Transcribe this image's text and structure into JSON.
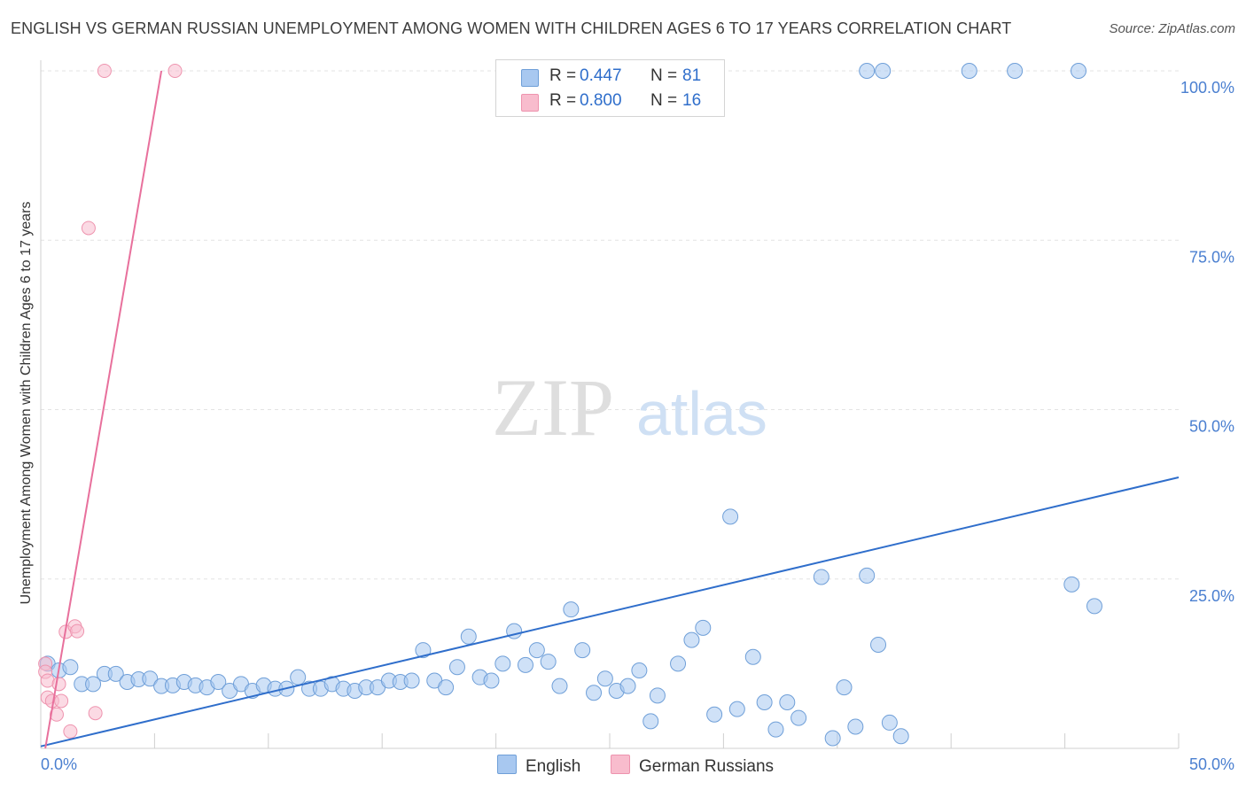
{
  "title": "ENGLISH VS GERMAN RUSSIAN UNEMPLOYMENT AMONG WOMEN WITH CHILDREN AGES 6 TO 17 YEARS CORRELATION CHART",
  "source": "Source: ZipAtlas.com",
  "watermark": {
    "zip": "ZIP",
    "atlas": "atlas"
  },
  "legend": {
    "english": {
      "r_label": "R =",
      "r_value": "0.447",
      "n_label": "N =",
      "n_value": "81"
    },
    "german_russians": {
      "r_label": "R =",
      "r_value": "0.800",
      "n_label": "N =",
      "n_value": "16"
    }
  },
  "bottom_legend": {
    "english": "English",
    "german_russians": "German Russians"
  },
  "colors": {
    "english_fill": "#a8c8f0",
    "english_stroke": "#6f9fd8",
    "english_line": "#2f6ecb",
    "german_fill": "#f8bccd",
    "german_stroke": "#ee93ae",
    "german_line": "#e8709c",
    "tick_text": "#4a7fd0",
    "grid": "#e3e3e3"
  },
  "chart_data": {
    "type": "scatter",
    "title": "ENGLISH VS GERMAN RUSSIAN UNEMPLOYMENT AMONG WOMEN WITH CHILDREN AGES 6 TO 17 YEARS CORRELATION CHART",
    "xlabel": "",
    "ylabel": "Unemployment Among Women with Children Ages 6 to 17 years",
    "xlim": [
      0,
      50
    ],
    "ylim": [
      0,
      100
    ],
    "x_tick_labels": [
      {
        "value": 0,
        "label": "0.0%"
      },
      {
        "value": 50,
        "label": "50.0%"
      }
    ],
    "y_tick_labels": [
      {
        "value": 25,
        "label": "25.0%"
      },
      {
        "value": 50,
        "label": "50.0%"
      },
      {
        "value": 75,
        "label": "75.0%"
      },
      {
        "value": 100,
        "label": "100.0%"
      }
    ],
    "series": [
      {
        "name": "English",
        "points": [
          [
            0.3,
            12.5
          ],
          [
            0.8,
            11.5
          ],
          [
            1.3,
            12.0
          ],
          [
            1.8,
            9.5
          ],
          [
            2.3,
            9.5
          ],
          [
            2.8,
            11.0
          ],
          [
            3.3,
            11.0
          ],
          [
            3.8,
            9.8
          ],
          [
            4.3,
            10.2
          ],
          [
            4.8,
            10.3
          ],
          [
            5.3,
            9.2
          ],
          [
            5.8,
            9.3
          ],
          [
            6.3,
            9.8
          ],
          [
            6.8,
            9.3
          ],
          [
            7.3,
            9.0
          ],
          [
            7.8,
            9.8
          ],
          [
            8.3,
            8.5
          ],
          [
            8.8,
            9.5
          ],
          [
            9.3,
            8.5
          ],
          [
            9.8,
            9.3
          ],
          [
            10.3,
            8.8
          ],
          [
            10.8,
            8.8
          ],
          [
            11.3,
            10.5
          ],
          [
            11.8,
            8.8
          ],
          [
            12.3,
            8.8
          ],
          [
            12.8,
            9.5
          ],
          [
            13.3,
            8.8
          ],
          [
            13.8,
            8.5
          ],
          [
            14.3,
            9.0
          ],
          [
            14.8,
            9.0
          ],
          [
            15.3,
            10.0
          ],
          [
            15.8,
            9.8
          ],
          [
            16.3,
            10.0
          ],
          [
            16.8,
            14.5
          ],
          [
            17.3,
            10.0
          ],
          [
            17.8,
            9.0
          ],
          [
            18.3,
            12.0
          ],
          [
            18.8,
            16.5
          ],
          [
            19.3,
            10.5
          ],
          [
            19.8,
            10.0
          ],
          [
            20.3,
            12.5
          ],
          [
            20.8,
            17.3
          ],
          [
            21.3,
            12.3
          ],
          [
            21.8,
            14.5
          ],
          [
            22.3,
            12.8
          ],
          [
            22.8,
            9.2
          ],
          [
            23.3,
            20.5
          ],
          [
            23.8,
            14.5
          ],
          [
            24.3,
            8.2
          ],
          [
            24.8,
            10.3
          ],
          [
            25.3,
            8.5
          ],
          [
            25.8,
            9.2
          ],
          [
            26.3,
            11.5
          ],
          [
            26.8,
            4.0
          ],
          [
            27.1,
            7.8
          ],
          [
            28.0,
            12.5
          ],
          [
            28.6,
            16.0
          ],
          [
            29.1,
            17.8
          ],
          [
            29.6,
            5.0
          ],
          [
            30.3,
            34.2
          ],
          [
            30.6,
            5.8
          ],
          [
            31.3,
            13.5
          ],
          [
            31.8,
            6.8
          ],
          [
            32.3,
            2.8
          ],
          [
            32.8,
            6.8
          ],
          [
            33.3,
            4.5
          ],
          [
            34.3,
            25.3
          ],
          [
            34.8,
            1.5
          ],
          [
            35.3,
            9.0
          ],
          [
            35.8,
            3.2
          ],
          [
            36.3,
            25.5
          ],
          [
            36.8,
            15.3
          ],
          [
            37.3,
            3.8
          ],
          [
            37.8,
            1.8
          ],
          [
            36.3,
            100.0
          ],
          [
            37.0,
            100.0
          ],
          [
            40.8,
            100.0
          ],
          [
            42.8,
            100.0
          ],
          [
            45.6,
            100.0
          ],
          [
            45.3,
            24.2
          ],
          [
            46.3,
            21.0
          ]
        ],
        "trend": {
          "x": [
            0,
            50
          ],
          "y": [
            0.3,
            40.0
          ]
        }
      },
      {
        "name": "German Russians",
        "points": [
          [
            0.2,
            12.5
          ],
          [
            0.2,
            11.3
          ],
          [
            0.3,
            10.0
          ],
          [
            0.3,
            7.5
          ],
          [
            0.5,
            7.0
          ],
          [
            0.7,
            5.0
          ],
          [
            0.8,
            9.5
          ],
          [
            0.9,
            7.0
          ],
          [
            1.1,
            17.2
          ],
          [
            1.3,
            2.5
          ],
          [
            1.5,
            18.0
          ],
          [
            1.6,
            17.3
          ],
          [
            2.1,
            76.8
          ],
          [
            2.4,
            5.2
          ],
          [
            2.8,
            100.0
          ],
          [
            5.9,
            100.0
          ]
        ],
        "trend": {
          "x": [
            0.2,
            5.3
          ],
          "y": [
            0.0,
            100.0
          ]
        }
      }
    ]
  }
}
